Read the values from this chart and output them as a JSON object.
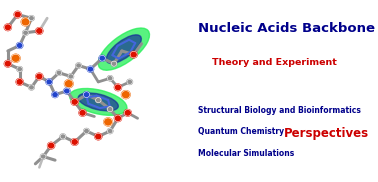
{
  "title": "Nucleic Acids Backbone",
  "subtitle": "Theory and Experiment",
  "items": [
    "Structural Biology and Bioinformatics",
    "Quantum Chemistry",
    "Molecular Simulations"
  ],
  "perspectives": "Perspectives",
  "title_color": "#00008B",
  "subtitle_color": "#CC0000",
  "items_color": "#00008B",
  "perspectives_color": "#CC0000",
  "bg_color": "#ffffff",
  "title_fontsize": 9.5,
  "subtitle_fontsize": 6.8,
  "items_fontsize": 5.5,
  "perspectives_fontsize": 8.5,
  "figsize": [
    3.78,
    1.82
  ],
  "dpi": 100,
  "mol_gray": "#909090",
  "mol_red": "#DD1100",
  "mol_orange": "#EE6600",
  "mol_blue": "#2244CC",
  "mol_green": "#22EE55",
  "mol_dark_blue": "#112299",
  "mol_light_gray": "#BBBBBB"
}
